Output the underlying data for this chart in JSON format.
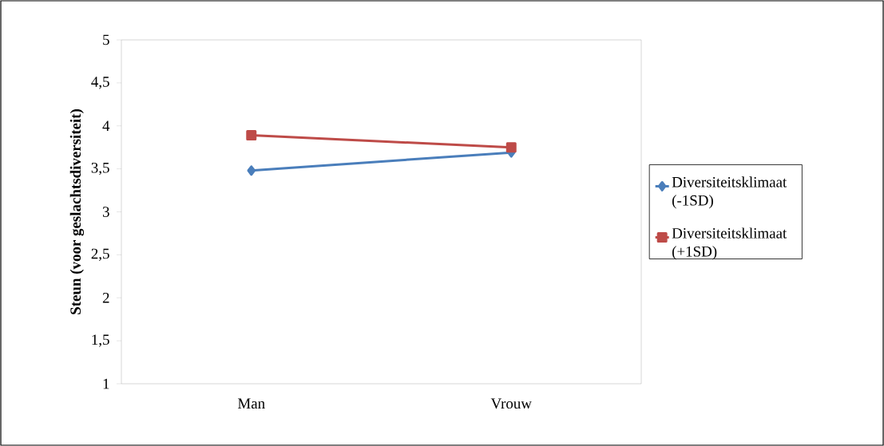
{
  "chart_data": {
    "type": "line",
    "ylabel": "Steun (voor geslachtsdiversiteit)",
    "categories": [
      "Man",
      "Vrouw"
    ],
    "series": [
      {
        "name": "Diversiteitsklimaat (-1SD)",
        "color": "#4a7ebb",
        "values": [
          3.48,
          3.69
        ],
        "marker": "diamond"
      },
      {
        "name": "Diversiteitsklimaat (+1SD)",
        "color": "#be4b48",
        "values": [
          3.89,
          3.75
        ],
        "marker": "square"
      }
    ],
    "ylim": [
      1,
      5
    ],
    "yticks": [
      1,
      {
        "value": 1.5,
        "label": "1,5"
      },
      2,
      {
        "value": 2.5,
        "label": "2,5"
      },
      3,
      {
        "value": 3.5,
        "label": "3,5"
      },
      4,
      {
        "value": 4.5,
        "label": "4,5"
      },
      5
    ],
    "legend": "right"
  }
}
